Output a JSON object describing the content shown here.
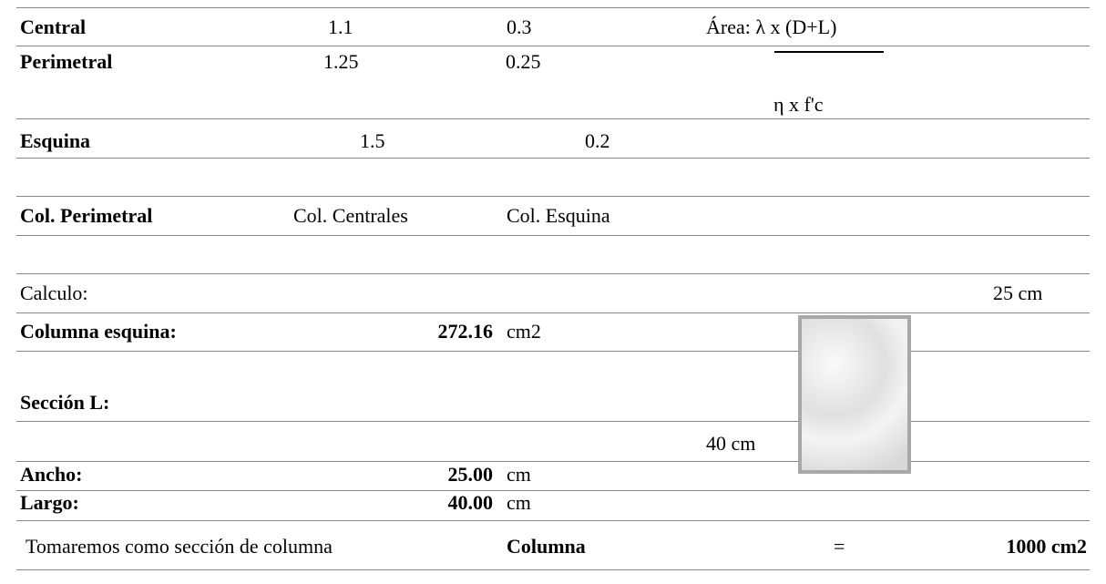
{
  "table": {
    "rows": [
      [
        "Central",
        "1.1",
        "0.3",
        "Área: λ x (D+L)"
      ],
      [
        "Perimetral",
        "1.25",
        "0.25"
      ],
      [
        "η x f'c"
      ],
      [
        "Esquina",
        "1.5",
        "0.2"
      ],
      [
        "Col. Perimetral",
        "Col. Centrales",
        "Col. Esquina"
      ],
      [
        "Calculo:",
        "25 cm"
      ],
      [
        "Columna esquina:",
        "272.16",
        "cm2"
      ],
      [
        "Sección L:"
      ],
      [
        "40 cm"
      ],
      [
        "Ancho:",
        "25.00",
        "cm"
      ],
      [
        "Largo:",
        "40.00",
        "cm"
      ],
      [
        "Tomaremos como sección de columna",
        "Columna",
        "=",
        "1000 cm2"
      ]
    ]
  }
}
